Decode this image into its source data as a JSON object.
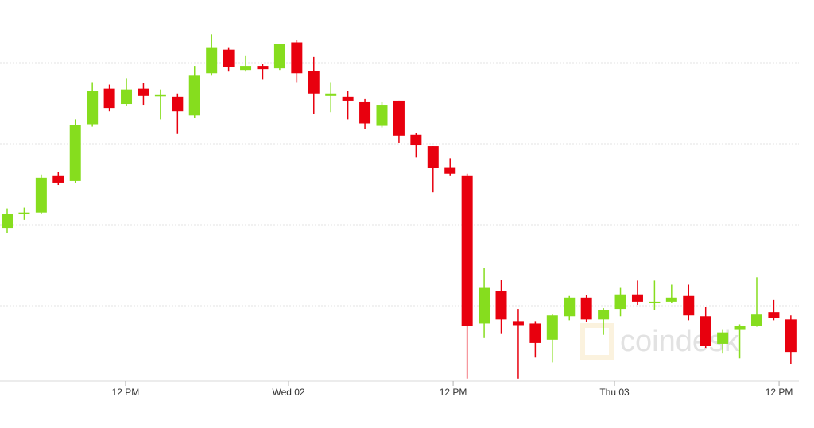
{
  "chart_data": {
    "type": "candlestick",
    "watermark": "coindesk",
    "up_color": "#86dd1e",
    "down_color": "#e8000e",
    "grid": true,
    "x": [
      0,
      1,
      2,
      3,
      4,
      5,
      6,
      7,
      8,
      9,
      10,
      11,
      12,
      13,
      14,
      15,
      16,
      17,
      18,
      19,
      20,
      21,
      22,
      23,
      24,
      25,
      26,
      27,
      28,
      29,
      30,
      31,
      32,
      33,
      34,
      35,
      36,
      37,
      38,
      39,
      40,
      41,
      42,
      43,
      44,
      45,
      46
    ],
    "open": [
      1.96,
      2.13,
      2.15,
      2.6,
      2.54,
      3.24,
      3.68,
      3.49,
      3.68,
      3.6,
      3.58,
      3.35,
      3.87,
      4.16,
      3.91,
      3.96,
      3.93,
      4.25,
      3.9,
      3.59,
      3.58,
      3.52,
      3.22,
      3.53,
      3.11,
      2.97,
      2.71,
      2.6,
      0.78,
      1.18,
      0.81,
      0.78,
      0.58,
      0.87,
      1.1,
      0.83,
      0.96,
      1.14,
      1.05,
      1.05,
      1.12,
      0.87,
      0.53,
      0.71,
      0.75,
      0.92,
      0.83
    ],
    "high": [
      2.2,
      2.21,
      2.62,
      2.65,
      3.3,
      3.76,
      3.73,
      3.81,
      3.75,
      3.67,
      3.62,
      3.96,
      4.35,
      4.19,
      4.09,
      3.99,
      4.23,
      4.28,
      4.07,
      3.76,
      3.65,
      3.55,
      3.52,
      3.53,
      3.13,
      2.97,
      2.82,
      2.63,
      1.47,
      1.32,
      0.96,
      0.81,
      0.9,
      1.12,
      1.13,
      0.97,
      1.22,
      1.31,
      1.31,
      1.26,
      1.26,
      0.99,
      0.71,
      0.77,
      1.35,
      1.07,
      0.88
    ],
    "low": [
      1.9,
      2.06,
      2.13,
      2.49,
      2.52,
      3.21,
      3.4,
      3.47,
      3.48,
      3.3,
      3.12,
      3.32,
      3.84,
      3.89,
      3.89,
      3.79,
      3.91,
      3.76,
      3.37,
      3.39,
      3.3,
      3.18,
      3.2,
      3.01,
      2.83,
      2.4,
      2.6,
      0.1,
      0.6,
      0.66,
      0.1,
      0.36,
      0.3,
      0.82,
      0.8,
      0.64,
      0.87,
      1.01,
      0.95,
      1.03,
      0.82,
      0.48,
      0.41,
      0.35,
      0.74,
      0.82,
      0.28
    ],
    "close": [
      2.13,
      2.15,
      2.58,
      2.52,
      3.23,
      3.65,
      3.44,
      3.67,
      3.59,
      3.6,
      3.4,
      3.84,
      4.19,
      3.95,
      3.96,
      3.92,
      4.23,
      3.87,
      3.62,
      3.62,
      3.53,
      3.25,
      3.48,
      3.1,
      2.98,
      2.7,
      2.63,
      0.75,
      1.22,
      0.83,
      0.76,
      0.54,
      0.88,
      1.1,
      0.83,
      0.95,
      1.14,
      1.05,
      1.05,
      1.1,
      0.88,
      0.5,
      0.67,
      0.75,
      0.89,
      0.85,
      0.43
    ],
    "xlim": [
      -0.42,
      47.36
    ],
    "xticks": [
      {
        "value": 6.95,
        "label": "12 PM"
      },
      {
        "value": 16.52,
        "label": "Wed 02"
      },
      {
        "value": 26.18,
        "label": "12 PM"
      },
      {
        "value": 35.65,
        "label": "Thu 03"
      },
      {
        "value": 45.31,
        "label": "12 PM"
      }
    ],
    "ylim": [
      0,
      4.4
    ],
    "grid_lines": [
      1,
      2,
      3,
      4
    ]
  }
}
